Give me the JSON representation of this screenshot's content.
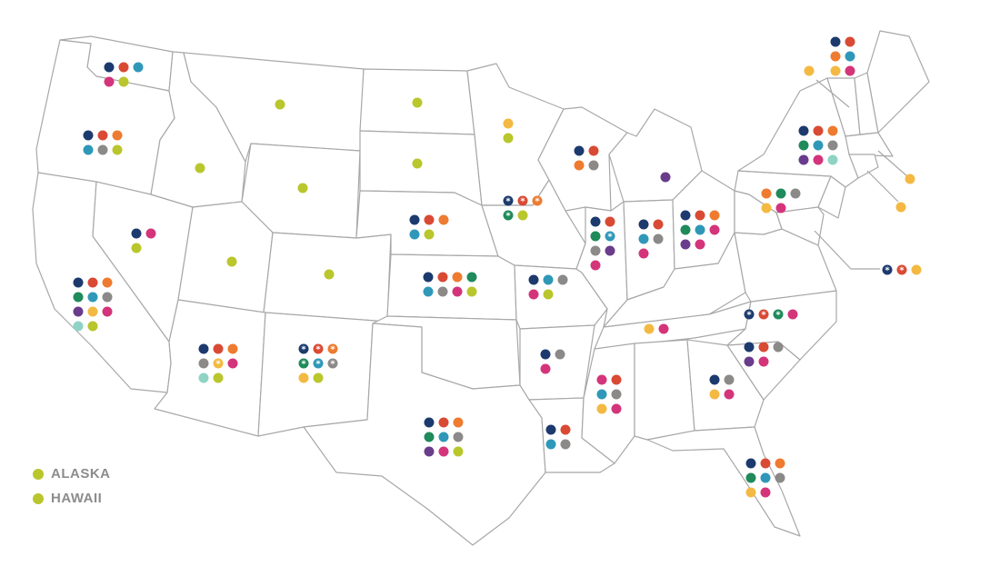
{
  "colors": {
    "navy": "#1c3a6e",
    "red": "#d94a35",
    "orange": "#ee7b30",
    "teal": "#2f98b8",
    "gray": "#8c8a88",
    "pink": "#d4347a",
    "lime": "#b9c62c",
    "green": "#1f8a5a",
    "purple": "#6a3c8c",
    "yellow": "#f4b942",
    "mint": "#8fd3c4",
    "border": "#a8a8a8",
    "label_text": "#8c8c8c"
  },
  "map": {
    "states": [
      {
        "state": "WA",
        "dots": [
          {
            "c": "navy"
          },
          {
            "c": "red"
          },
          {
            "c": "teal"
          },
          {
            "c": "pink"
          },
          {
            "c": "lime"
          }
        ]
      },
      {
        "state": "OR",
        "dots": [
          {
            "c": "navy"
          },
          {
            "c": "red"
          },
          {
            "c": "orange"
          },
          {
            "c": "teal"
          },
          {
            "c": "gray"
          },
          {
            "c": "lime"
          }
        ]
      },
      {
        "state": "CA",
        "dots": [
          {
            "c": "navy"
          },
          {
            "c": "red"
          },
          {
            "c": "orange"
          },
          {
            "c": "green"
          },
          {
            "c": "teal"
          },
          {
            "c": "gray"
          },
          {
            "c": "purple"
          },
          {
            "c": "yellow"
          },
          {
            "c": "pink"
          },
          {
            "c": "mint"
          },
          {
            "c": "lime"
          }
        ]
      },
      {
        "state": "NV",
        "dots": [
          {
            "c": "navy"
          },
          {
            "c": "pink"
          },
          {
            "c": "lime"
          }
        ]
      },
      {
        "state": "ID",
        "dots": [
          {
            "c": "lime"
          }
        ]
      },
      {
        "state": "MT",
        "dots": [
          {
            "c": "lime"
          }
        ]
      },
      {
        "state": "WY",
        "dots": [
          {
            "c": "lime"
          }
        ]
      },
      {
        "state": "UT",
        "dots": [
          {
            "c": "lime"
          }
        ]
      },
      {
        "state": "CO",
        "dots": [
          {
            "c": "lime"
          }
        ]
      },
      {
        "state": "AZ",
        "dots": [
          {
            "c": "navy"
          },
          {
            "c": "red"
          },
          {
            "c": "orange"
          },
          {
            "c": "gray"
          },
          {
            "c": "yellow",
            "s": true
          },
          {
            "c": "pink"
          },
          {
            "c": "mint"
          },
          {
            "c": "lime"
          }
        ]
      },
      {
        "state": "NM",
        "dots": [
          {
            "c": "navy",
            "s": true
          },
          {
            "c": "red",
            "s": true
          },
          {
            "c": "orange",
            "s": true
          },
          {
            "c": "green",
            "s": true
          },
          {
            "c": "teal",
            "s": true
          },
          {
            "c": "gray",
            "s": true
          },
          {
            "c": "yellow"
          },
          {
            "c": "lime"
          }
        ]
      },
      {
        "state": "ND",
        "dots": [
          {
            "c": "lime"
          }
        ]
      },
      {
        "state": "SD",
        "dots": [
          {
            "c": "lime"
          }
        ]
      },
      {
        "state": "NE",
        "dots": [
          {
            "c": "navy"
          },
          {
            "c": "red"
          },
          {
            "c": "orange"
          },
          {
            "c": "teal"
          },
          {
            "c": "lime"
          }
        ]
      },
      {
        "state": "KS",
        "dots": [
          {
            "c": "navy"
          },
          {
            "c": "red"
          },
          {
            "c": "orange"
          },
          {
            "c": "green"
          },
          {
            "c": "teal"
          },
          {
            "c": "gray"
          },
          {
            "c": "pink"
          },
          {
            "c": "lime"
          }
        ]
      },
      {
        "state": "OK",
        "dots": []
      },
      {
        "state": "TX",
        "dots": [
          {
            "c": "navy"
          },
          {
            "c": "red"
          },
          {
            "c": "orange"
          },
          {
            "c": "green"
          },
          {
            "c": "teal"
          },
          {
            "c": "gray"
          },
          {
            "c": "purple"
          },
          {
            "c": "pink"
          },
          {
            "c": "lime"
          }
        ]
      },
      {
        "state": "MN",
        "dots": [
          {
            "c": "yellow"
          },
          {
            "c": "lime"
          }
        ]
      },
      {
        "state": "IA",
        "dots": [
          {
            "c": "navy",
            "s": true
          },
          {
            "c": "red",
            "s": true
          },
          {
            "c": "orange",
            "s": true
          },
          {
            "c": "green",
            "s": true
          },
          {
            "c": "lime"
          }
        ]
      },
      {
        "state": "MO",
        "dots": [
          {
            "c": "navy"
          },
          {
            "c": "teal"
          },
          {
            "c": "gray"
          },
          {
            "c": "pink"
          },
          {
            "c": "lime"
          }
        ]
      },
      {
        "state": "AR",
        "dots": [
          {
            "c": "navy"
          },
          {
            "c": "gray"
          },
          {
            "c": "pink"
          }
        ]
      },
      {
        "state": "LA",
        "dots": [
          {
            "c": "navy"
          },
          {
            "c": "red"
          },
          {
            "c": "teal"
          },
          {
            "c": "gray"
          }
        ]
      },
      {
        "state": "WI",
        "dots": [
          {
            "c": "navy"
          },
          {
            "c": "red"
          },
          {
            "c": "orange"
          },
          {
            "c": "gray"
          }
        ]
      },
      {
        "state": "IL",
        "dots": [
          {
            "c": "navy"
          },
          {
            "c": "red"
          },
          {
            "c": "green"
          },
          {
            "c": "teal",
            "s": true
          },
          {
            "c": "gray"
          },
          {
            "c": "purple"
          },
          {
            "c": "pink"
          }
        ]
      },
      {
        "state": "MI",
        "dots": [
          {
            "c": "purple"
          }
        ]
      },
      {
        "state": "IN",
        "dots": [
          {
            "c": "navy"
          },
          {
            "c": "red"
          },
          {
            "c": "teal"
          },
          {
            "c": "gray"
          },
          {
            "c": "pink"
          }
        ]
      },
      {
        "state": "OH",
        "dots": [
          {
            "c": "navy"
          },
          {
            "c": "red"
          },
          {
            "c": "orange"
          },
          {
            "c": "green"
          },
          {
            "c": "teal"
          },
          {
            "c": "pink"
          },
          {
            "c": "purple"
          },
          {
            "c": "pink"
          }
        ]
      },
      {
        "state": "KY",
        "dots": []
      },
      {
        "state": "TN",
        "dots": [
          {
            "c": "yellow"
          },
          {
            "c": "pink"
          }
        ]
      },
      {
        "state": "MS",
        "dots": [
          {
            "c": "pink"
          },
          {
            "c": "red"
          },
          {
            "c": "teal"
          },
          {
            "c": "gray"
          },
          {
            "c": "yellow"
          },
          {
            "c": "pink"
          }
        ]
      },
      {
        "state": "AL",
        "dots": []
      },
      {
        "state": "GA",
        "dots": [
          {
            "c": "navy"
          },
          {
            "c": "gray"
          },
          {
            "c": "yellow"
          },
          {
            "c": "pink"
          }
        ]
      },
      {
        "state": "FL",
        "dots": [
          {
            "c": "navy"
          },
          {
            "c": "red"
          },
          {
            "c": "orange"
          },
          {
            "c": "green"
          },
          {
            "c": "teal"
          },
          {
            "c": "gray"
          },
          {
            "c": "yellow"
          },
          {
            "c": "pink"
          }
        ]
      },
      {
        "state": "SC",
        "dots": [
          {
            "c": "navy"
          },
          {
            "c": "red"
          },
          {
            "c": "gray"
          },
          {
            "c": "purple"
          },
          {
            "c": "pink"
          }
        ]
      },
      {
        "state": "NC",
        "dots": [
          {
            "c": "navy",
            "s": true
          },
          {
            "c": "red",
            "s": true
          },
          {
            "c": "green",
            "s": true
          },
          {
            "c": "pink"
          }
        ]
      },
      {
        "state": "VA",
        "dots": []
      },
      {
        "state": "WV",
        "dots": []
      },
      {
        "state": "PA",
        "dots": [
          {
            "c": "orange"
          },
          {
            "c": "green"
          },
          {
            "c": "gray"
          },
          {
            "c": "yellow"
          },
          {
            "c": "pink"
          }
        ]
      },
      {
        "state": "NY",
        "dots": [
          {
            "c": "navy"
          },
          {
            "c": "red"
          },
          {
            "c": "orange"
          },
          {
            "c": "green"
          },
          {
            "c": "teal"
          },
          {
            "c": "gray"
          },
          {
            "c": "purple"
          },
          {
            "c": "pink"
          },
          {
            "c": "mint"
          }
        ]
      },
      {
        "state": "ME",
        "dots": [
          {
            "c": "navy"
          },
          {
            "c": "red"
          },
          {
            "c": "orange"
          },
          {
            "c": "teal"
          },
          {
            "c": "yellow"
          },
          {
            "c": "pink"
          }
        ]
      },
      {
        "state": "VT",
        "dots": [
          {
            "c": "yellow"
          }
        ]
      },
      {
        "state": "MA",
        "dots": [
          {
            "c": "yellow"
          }
        ]
      },
      {
        "state": "CT",
        "dots": [
          {
            "c": "yellow"
          }
        ]
      },
      {
        "state": "MD",
        "dots": [
          {
            "c": "navy",
            "s": true
          },
          {
            "c": "red",
            "s": true
          },
          {
            "c": "yellow"
          }
        ]
      }
    ]
  },
  "legend": {
    "items": [
      {
        "label": "ALASKA",
        "color": "lime"
      },
      {
        "label": "HAWAII",
        "color": "lime"
      }
    ]
  }
}
